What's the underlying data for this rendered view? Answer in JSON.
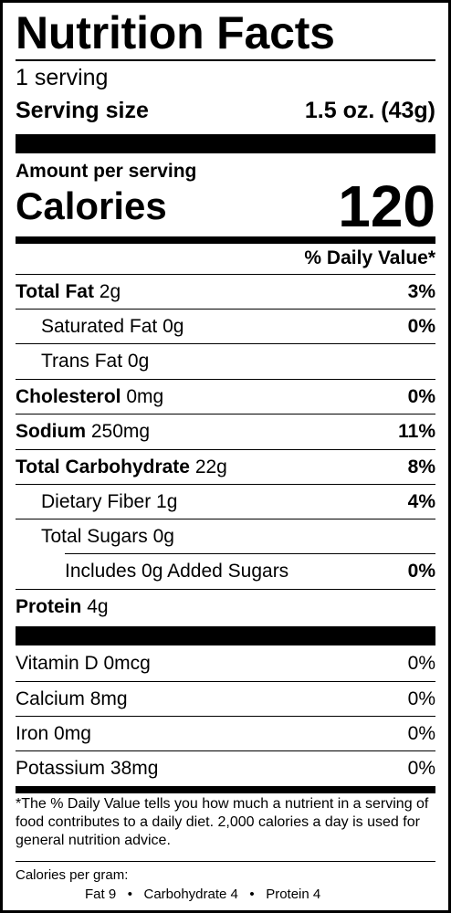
{
  "title": "Nutrition Facts",
  "servings": "1 serving",
  "serving_size": {
    "label": "Serving size",
    "value": "1.5 oz. (43g)"
  },
  "amount_per_serving": "Amount per serving",
  "calories": {
    "label": "Calories",
    "value": "120"
  },
  "daily_value_header": "% Daily Value*",
  "nutrients": [
    {
      "name": "Total Fat",
      "amount": "2g",
      "dv": "3%"
    },
    {
      "name": "Saturated Fat",
      "amount": "0g",
      "dv": "0%"
    },
    {
      "name": "Trans Fat",
      "amount": "0g",
      "dv": ""
    },
    {
      "name": "Cholesterol",
      "amount": "0mg",
      "dv": "0%"
    },
    {
      "name": "Sodium",
      "amount": "250mg",
      "dv": "11%"
    },
    {
      "name": "Total Carbohydrate",
      "amount": "22g",
      "dv": "8%"
    },
    {
      "name": "Dietary Fiber",
      "amount": "1g",
      "dv": "4%"
    },
    {
      "name": "Total Sugars",
      "amount": "0g",
      "dv": ""
    },
    {
      "name": "Includes 0g Added Sugars",
      "amount": "",
      "dv": "0%"
    },
    {
      "name": "Protein",
      "amount": "4g",
      "dv": ""
    }
  ],
  "vitamins": [
    {
      "name": "Vitamin D",
      "amount": "0mcg",
      "dv": "0%"
    },
    {
      "name": "Calcium",
      "amount": "8mg",
      "dv": "0%"
    },
    {
      "name": "Iron",
      "amount": "0mg",
      "dv": "0%"
    },
    {
      "name": "Potassium",
      "amount": "38mg",
      "dv": "0%"
    }
  ],
  "footnote": "*The % Daily Value tells you how much a nutrient in a serving of food contributes to a daily diet. 2,000 calories a day is used for general nutrition advice.",
  "calories_per_gram": {
    "label": "Calories per gram:",
    "fat": "Fat 9",
    "carbohydrate": "Carbohydrate 4",
    "protein": "Protein 4",
    "separator": "•"
  }
}
